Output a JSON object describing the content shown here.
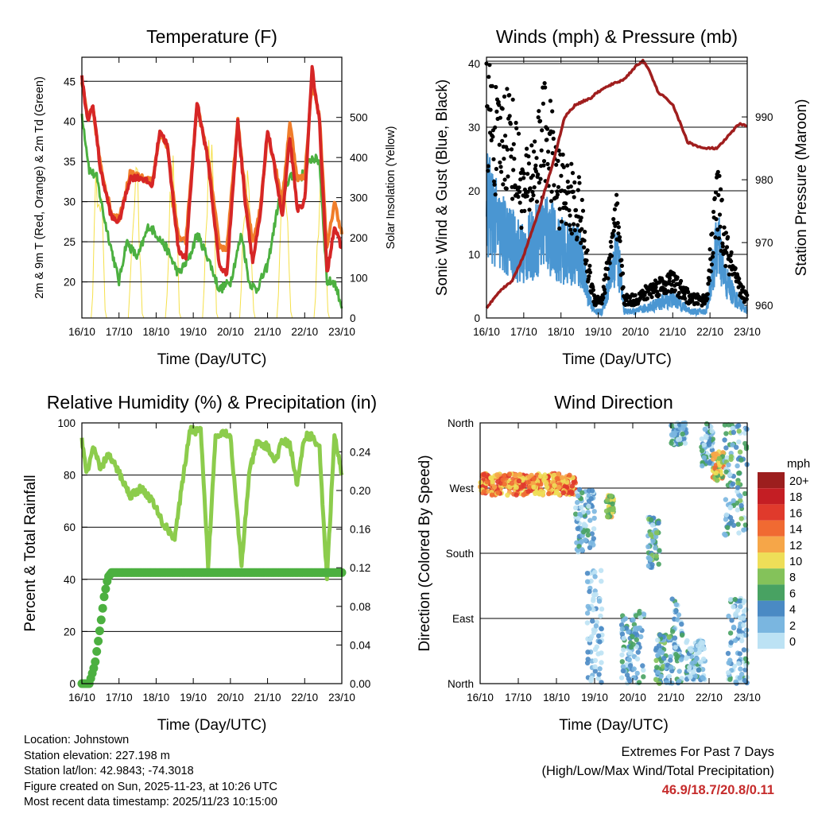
{
  "colors": {
    "temp_2m": "#d62626",
    "temp_9m": "#f07d2a",
    "dewpoint": "#4cb040",
    "insolation": "#f5e04a",
    "wind": "#4a96d2",
    "gust": "#000000",
    "pressure": "#a01e1e",
    "rh": "#8ccc4c",
    "precip": "#4cb040",
    "extremes_text": "#c62c2c"
  },
  "chart_data": [
    {
      "id": "temperature",
      "type": "line",
      "title": "Temperature (F)",
      "xlabel": "Time (Day/UTC)",
      "ylabel": "2m & 9m T (Red, Orange) & 2m Td (Green)",
      "y2label": "Solar Insolation (Yellow)",
      "x_ticks": [
        "16/10",
        "17/10",
        "18/10",
        "19/10",
        "20/10",
        "21/10",
        "22/10",
        "23/10"
      ],
      "ylim": [
        15.5,
        48
      ],
      "y_ticks": [
        20,
        25,
        30,
        35,
        40,
        45
      ],
      "y2lim": [
        0,
        650
      ],
      "y2_ticks": [
        0,
        100,
        200,
        300,
        400,
        500
      ],
      "series": [
        {
          "name": "2m T",
          "x": [
            0,
            0.15,
            0.3,
            0.5,
            0.8,
            1.0,
            1.3,
            1.6,
            1.9,
            2.1,
            2.3,
            2.6,
            2.8,
            3.1,
            3.4,
            3.7,
            3.9,
            4.2,
            4.4,
            4.6,
            4.8,
            5.0,
            5.2,
            5.4,
            5.6,
            5.8,
            6.0,
            6.2,
            6.4,
            6.6,
            6.8,
            7.0
          ],
          "values": [
            45.5,
            40,
            42,
            34,
            28,
            27.5,
            33,
            33,
            32,
            39,
            37,
            24,
            23,
            42.5,
            35,
            22,
            21,
            40,
            30,
            22.5,
            28,
            39,
            34,
            28,
            38,
            29,
            30,
            46.5,
            40,
            21,
            27,
            24
          ]
        },
        {
          "name": "9m T",
          "x": [
            0,
            0.15,
            0.3,
            0.5,
            0.8,
            1.0,
            1.3,
            1.6,
            1.9,
            2.1,
            2.3,
            2.6,
            2.8,
            3.1,
            3.4,
            3.7,
            3.9,
            4.2,
            4.4,
            4.6,
            4.8,
            5.0,
            5.2,
            5.4,
            5.6,
            5.8,
            6.0,
            6.2,
            6.4,
            6.6,
            6.8,
            7.0
          ],
          "values": [
            45,
            40.5,
            41.5,
            34.5,
            28.5,
            28,
            33.5,
            33,
            32.5,
            38.5,
            37,
            25.5,
            25,
            42,
            35.5,
            24.5,
            24,
            40,
            31,
            25,
            29,
            38.5,
            34.5,
            30,
            40,
            33,
            33,
            45,
            40.5,
            24,
            30,
            26
          ]
        },
        {
          "name": "2m Td",
          "x": [
            0,
            0.2,
            0.4,
            0.6,
            0.8,
            1.0,
            1.2,
            1.5,
            1.8,
            2.0,
            2.3,
            2.6,
            2.9,
            3.1,
            3.4,
            3.7,
            4.0,
            4.3,
            4.5,
            4.7,
            5.0,
            5.3,
            5.6,
            5.9,
            6.2,
            6.4,
            6.6,
            6.8,
            7.0
          ],
          "values": [
            41,
            34,
            33,
            28,
            24,
            20,
            25,
            23,
            27,
            26,
            24,
            21,
            23,
            26,
            23,
            19,
            20,
            26,
            20,
            19,
            22,
            30,
            33,
            33,
            35.5,
            35,
            20,
            20,
            17
          ]
        },
        {
          "name": "Solar Insolation",
          "axis": "y2",
          "peak_day_fraction": 0.45,
          "daily_peaks": [
            470,
            410,
            420,
            480,
            420,
            410,
            420
          ]
        }
      ]
    },
    {
      "id": "winds_pressure",
      "type": "line",
      "title": "Winds (mph) & Pressure (mb)",
      "xlabel": "Time (Day/UTC)",
      "ylabel": "Sonic Wind & Gust (Blue, Black)",
      "y2label": "Station Pressure (Maroon)",
      "x_ticks": [
        "16/10",
        "17/10",
        "18/10",
        "19/10",
        "20/10",
        "21/10",
        "22/10",
        "23/10"
      ],
      "ylim": [
        0,
        41
      ],
      "y_ticks": [
        0,
        10,
        20,
        30,
        40
      ],
      "y2lim": [
        958,
        999.5
      ],
      "y2_ticks": [
        960,
        970,
        980,
        990
      ],
      "series": [
        {
          "name": "Gust",
          "x": [
            0,
            0.3,
            0.6,
            1.0,
            1.3,
            1.6,
            1.9,
            2.2,
            2.5,
            2.7,
            2.9,
            3.1,
            3.3,
            3.5,
            3.7,
            4.0,
            4.5,
            5.0,
            5.5,
            5.9,
            6.2,
            6.4,
            6.7,
            7.0
          ],
          "values": [
            35,
            28,
            31,
            20,
            25,
            31,
            22,
            20,
            18,
            9,
            3,
            3,
            10,
            16,
            3,
            3,
            5,
            6,
            3,
            3,
            20,
            12,
            6,
            3
          ]
        },
        {
          "name": "Sonic Wind",
          "x": [
            0,
            0.3,
            0.6,
            1.0,
            1.3,
            1.6,
            1.9,
            2.2,
            2.5,
            2.7,
            2.9,
            3.1,
            3.3,
            3.5,
            3.7,
            4.0,
            4.5,
            5.0,
            5.5,
            5.9,
            6.2,
            6.4,
            6.7,
            7.0
          ],
          "values": [
            19,
            14,
            12,
            10,
            12,
            14,
            11,
            10,
            10,
            4,
            1,
            1,
            6,
            11,
            1,
            1,
            2,
            3,
            1,
            1,
            12,
            6,
            3,
            1
          ]
        },
        {
          "name": "Station Pressure",
          "axis": "y2",
          "x": [
            0,
            0.3,
            0.7,
            1.0,
            1.4,
            1.8,
            2.1,
            2.4,
            2.8,
            3.0,
            3.3,
            3.7,
            4.0,
            4.2,
            4.4,
            4.6,
            5.0,
            5.4,
            5.8,
            6.2,
            6.5,
            6.8,
            7.0
          ],
          "values": [
            959.5,
            962,
            964,
            968,
            975,
            983,
            990,
            992,
            993,
            994,
            995,
            996,
            998,
            999,
            997,
            994,
            992,
            986,
            985,
            985,
            987,
            989,
            988.5
          ]
        }
      ]
    },
    {
      "id": "rh_precip",
      "type": "line",
      "title": "Relative Humidity (%) & Precipitation (in)",
      "xlabel": "Time (Day/UTC)",
      "ylabel": "Percent & Total Rainfall",
      "x_ticks": [
        "16/10",
        "17/10",
        "18/10",
        "19/10",
        "20/10",
        "21/10",
        "22/10",
        "23/10"
      ],
      "ylim": [
        0,
        100
      ],
      "y_ticks": [
        0,
        20,
        40,
        60,
        80,
        100
      ],
      "y2lim": [
        0,
        0.27
      ],
      "y2_ticks": [
        "0.00",
        "0.04",
        "0.08",
        "0.12",
        "0.16",
        "0.20",
        "0.24"
      ],
      "series": [
        {
          "name": "Relative Humidity",
          "x": [
            0,
            0.15,
            0.3,
            0.5,
            0.7,
            1.0,
            1.3,
            1.6,
            1.9,
            2.2,
            2.5,
            2.7,
            2.9,
            3.2,
            3.4,
            3.6,
            3.8,
            4.0,
            4.3,
            4.5,
            4.7,
            5.0,
            5.2,
            5.4,
            5.6,
            5.8,
            6.0,
            6.2,
            6.4,
            6.6,
            6.8,
            7.0
          ],
          "values": [
            93,
            80,
            91,
            82,
            88,
            81,
            72,
            75,
            70,
            61,
            56,
            76,
            97,
            97,
            45,
            95,
            97,
            95,
            45,
            80,
            92,
            91,
            85,
            93,
            92,
            76,
            95,
            95,
            90,
            40,
            95,
            80
          ]
        },
        {
          "name": "Total Precipitation",
          "axis": "y2",
          "x": [
            0,
            0.2,
            0.35,
            0.5,
            0.6,
            0.7,
            0.8,
            1.0,
            2.0,
            3.0,
            4.0,
            5.0,
            6.0,
            7.0
          ],
          "values": [
            0,
            0,
            0.02,
            0.06,
            0.09,
            0.11,
            0.115,
            0.115,
            0.115,
            0.115,
            0.115,
            0.115,
            0.115,
            0.115
          ]
        }
      ]
    },
    {
      "id": "wind_direction",
      "type": "scatter",
      "title": "Wind Direction",
      "xlabel": "Time (Day/UTC)",
      "ylabel": "Direction (Colored By Speed)",
      "x_ticks": [
        "16/10",
        "17/10",
        "18/10",
        "19/10",
        "20/10",
        "21/10",
        "22/10",
        "23/10"
      ],
      "y_ticks": [
        "North",
        "East",
        "South",
        "West",
        "North"
      ],
      "ylim": [
        0,
        360
      ],
      "legend": {
        "title": "mph",
        "labels": [
          "20+",
          "18",
          "16",
          "14",
          "12",
          "10",
          "8",
          "6",
          "4",
          "2",
          "0"
        ],
        "colors": [
          "#9c1e1e",
          "#c41e24",
          "#e03a2c",
          "#f06a32",
          "#f6a648",
          "#eede58",
          "#84c25a",
          "#48a262",
          "#4a8ac4",
          "#7ab6e0",
          "#bce2f4"
        ]
      },
      "clusters": [
        {
          "x_range": [
            0,
            2.5
          ],
          "dir_range": [
            260,
            290
          ],
          "speed": 13
        },
        {
          "x_range": [
            2.5,
            3.0
          ],
          "dir_range": [
            180,
            270
          ],
          "speed": 2
        },
        {
          "x_range": [
            3.3,
            3.5
          ],
          "dir_range": [
            230,
            260
          ],
          "speed": 9
        },
        {
          "x_range": [
            2.8,
            3.2
          ],
          "dir_range": [
            0,
            160
          ],
          "speed": 1
        },
        {
          "x_range": [
            3.7,
            4.3
          ],
          "dir_range": [
            0,
            100
          ],
          "speed": 3
        },
        {
          "x_range": [
            4.4,
            4.7
          ],
          "dir_range": [
            160,
            230
          ],
          "speed": 4
        },
        {
          "x_range": [
            4.6,
            5.0
          ],
          "dir_range": [
            0,
            70
          ],
          "speed": 4
        },
        {
          "x_range": [
            5.0,
            5.3
          ],
          "dir_range": [
            0,
            120
          ],
          "speed": 3
        },
        {
          "x_range": [
            5.0,
            5.4
          ],
          "dir_range": [
            330,
            360
          ],
          "speed": 3
        },
        {
          "x_range": [
            5.4,
            5.9
          ],
          "dir_range": [
            0,
            60
          ],
          "speed": 2
        },
        {
          "x_range": [
            5.8,
            6.1
          ],
          "dir_range": [
            300,
            360
          ],
          "speed": 3
        },
        {
          "x_range": [
            6.1,
            6.4
          ],
          "dir_range": [
            280,
            320
          ],
          "speed": 10
        },
        {
          "x_range": [
            6.4,
            7.0
          ],
          "dir_range": [
            200,
            360
          ],
          "speed": 4
        },
        {
          "x_range": [
            6.5,
            7.0
          ],
          "dir_range": [
            0,
            120
          ],
          "speed": 2
        }
      ]
    }
  ],
  "footer": {
    "location": "Location: Johnstown",
    "elevation": "Station elevation: 227.198 m",
    "latlon": "Station lat/lon: 42.9843; -74.3018",
    "created": "Figure created on Sun, 2025-11-23, at 10:26 UTC",
    "recent": "Most recent data timestamp: 2025/11/23 10:15:00"
  },
  "extremes": {
    "heading": "Extremes For Past 7 Days",
    "subheading": "(High/Low/Max Wind/Total Precipitation)",
    "values": "46.9/18.7/20.8/0.11"
  }
}
